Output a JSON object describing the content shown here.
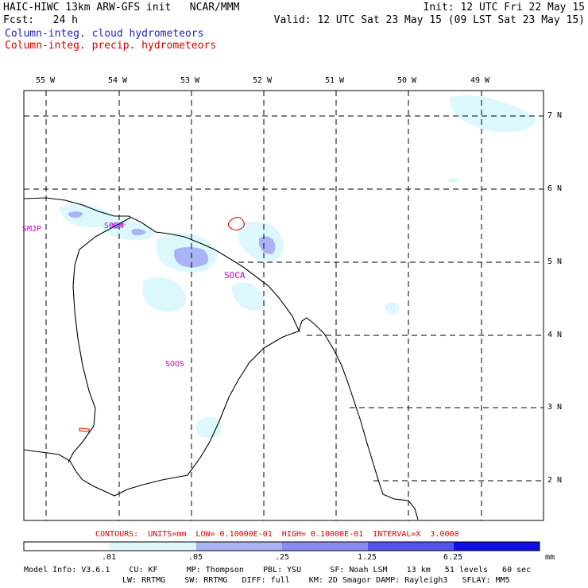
{
  "header": {
    "left_line1": "HAIC-HIWC 13km ARW-GFS init   NCAR/MMM",
    "left_line2": "Fcst:   24 h",
    "legend_cloud": "Column-integ. cloud hydrometeors",
    "legend_precip": "Column-integ. precip. hydrometeors",
    "init": "Init: 12 UTC Fri 22 May 15",
    "valid": "Valid: 12 UTC Sat 23 May 15 (09 LST Sat 23 May 15)"
  },
  "map": {
    "lon_labels": [
      "55 W",
      "54 W",
      "53 W",
      "52 W",
      "51 W",
      "50 W",
      "49 W"
    ],
    "lat_labels": [
      "7 N",
      "6 N",
      "5 N",
      "4 N",
      "3 N",
      "2 N"
    ],
    "stations": [
      "SMJP",
      "SOGM",
      "SOCA",
      "SOOS"
    ]
  },
  "contours": "CONTOURS:  UNITS=mm  LOW= 0.10000E-01  HIGH= 0.10000E-01  INTERVAL=X  3.0000",
  "colorbar": {
    "ticks": [
      ".01",
      ".05",
      ".25",
      "1.25",
      "6.25"
    ],
    "unit": "mm",
    "colors": [
      "#ffffff",
      "#dcf8fd",
      "#aab3f5",
      "#6a6af0",
      "#1010e6"
    ]
  },
  "model_info": {
    "line1": "Model Info: V3.6.1    CU: KF      MP: Thompson    PBL: YSU      SF: Noah LSM    13 km   51 levels   60 sec",
    "line2": "LW: RRTMG    SW: RRTMG   DIFF: full    KM: 2D Smagor DAMP: Rayleigh3   SFLAY: MM5"
  }
}
